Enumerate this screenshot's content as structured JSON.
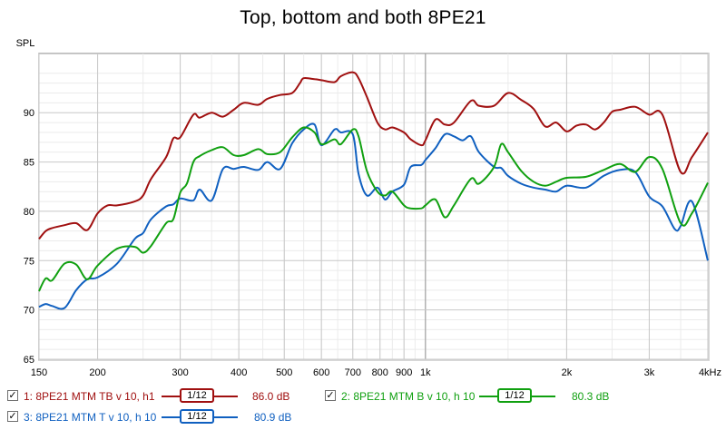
{
  "chart_data": {
    "type": "line",
    "title": "Top, bottom and both 8PE21",
    "ylabel": "SPL",
    "xlabel": "",
    "x_scale": "log",
    "xlim": [
      150,
      4000
    ],
    "ylim": [
      65,
      96
    ],
    "grid": true,
    "x_ticks": [
      {
        "value": 150,
        "label": "150"
      },
      {
        "value": 200,
        "label": "200"
      },
      {
        "value": 300,
        "label": "300"
      },
      {
        "value": 400,
        "label": "400"
      },
      {
        "value": 500,
        "label": "500"
      },
      {
        "value": 600,
        "label": "600"
      },
      {
        "value": 700,
        "label": "700"
      },
      {
        "value": 800,
        "label": "800"
      },
      {
        "value": 900,
        "label": "900"
      },
      {
        "value": 1000,
        "label": "1k"
      },
      {
        "value": 2000,
        "label": "2k"
      },
      {
        "value": 3000,
        "label": "3k"
      },
      {
        "value": 4000,
        "label": "4kHz"
      }
    ],
    "y_ticks": [
      65,
      70,
      75,
      80,
      85,
      90
    ],
    "series": [
      {
        "name": "1: 8PE21 MTM TB v 10, h1",
        "color": "#a01010",
        "x": [
          150,
          155,
          160,
          170,
          180,
          190,
          200,
          210,
          220,
          240,
          250,
          260,
          280,
          290,
          300,
          320,
          330,
          350,
          370,
          390,
          410,
          440,
          460,
          490,
          520,
          540,
          550,
          580,
          600,
          640,
          660,
          700,
          720,
          750,
          790,
          820,
          850,
          900,
          930,
          980,
          1000,
          1050,
          1100,
          1150,
          1250,
          1300,
          1400,
          1500,
          1600,
          1700,
          1800,
          1900,
          2000,
          2100,
          2200,
          2300,
          2400,
          2500,
          2600,
          2800,
          3000,
          3200,
          3500,
          3700,
          4000
        ],
        "y": [
          77.2,
          78.0,
          78.3,
          78.6,
          78.8,
          78.1,
          79.8,
          80.6,
          80.6,
          81.0,
          81.6,
          83.3,
          85.5,
          87.4,
          87.5,
          89.8,
          89.5,
          90.0,
          89.6,
          90.3,
          91.0,
          90.8,
          91.4,
          91.8,
          92.0,
          93.0,
          93.5,
          93.4,
          93.3,
          93.1,
          93.7,
          94.1,
          93.5,
          91.6,
          89.0,
          88.3,
          88.5,
          88.0,
          87.3,
          86.7,
          87.2,
          89.3,
          88.8,
          89.0,
          91.2,
          90.7,
          90.7,
          92.0,
          91.3,
          90.4,
          88.6,
          89.0,
          88.1,
          88.7,
          88.8,
          88.3,
          89.0,
          90.1,
          90.3,
          90.6,
          89.8,
          89.8,
          84.0,
          85.5,
          88.0
        ]
      },
      {
        "name": "2: 8PE21 MTM B v 10, h 10",
        "color": "#10a010",
        "x": [
          150,
          155,
          160,
          170,
          180,
          190,
          200,
          220,
          240,
          250,
          260,
          280,
          290,
          300,
          310,
          320,
          330,
          350,
          370,
          390,
          410,
          440,
          460,
          490,
          520,
          550,
          580,
          600,
          640,
          660,
          700,
          720,
          750,
          790,
          820,
          850,
          900,
          930,
          980,
          1000,
          1050,
          1100,
          1150,
          1250,
          1300,
          1400,
          1450,
          1500,
          1600,
          1700,
          1800,
          1900,
          2000,
          2200,
          2400,
          2600,
          2800,
          3000,
          3200,
          3500,
          3700,
          4000
        ],
        "y": [
          71.9,
          73.2,
          73.0,
          74.7,
          74.6,
          73.1,
          74.5,
          76.2,
          76.4,
          75.8,
          76.5,
          78.8,
          79.2,
          81.9,
          82.8,
          85.0,
          85.6,
          86.2,
          86.5,
          85.7,
          85.7,
          86.3,
          85.8,
          86.0,
          87.5,
          88.5,
          88.0,
          86.8,
          87.3,
          86.8,
          88.3,
          87.6,
          84.1,
          82.0,
          81.6,
          82.0,
          80.6,
          80.3,
          80.3,
          80.6,
          81.2,
          79.4,
          80.6,
          83.3,
          82.8,
          84.5,
          86.8,
          86.0,
          84.1,
          83.0,
          82.6,
          83.0,
          83.4,
          83.5,
          84.2,
          84.8,
          84.0,
          85.5,
          84.3,
          78.8,
          79.8,
          82.9
        ]
      },
      {
        "name": "3: 8PE21 MTM T v 10, h 10",
        "color": "#1060c0",
        "x": [
          150,
          155,
          160,
          170,
          180,
          190,
          200,
          220,
          240,
          250,
          260,
          280,
          290,
          300,
          320,
          330,
          350,
          370,
          390,
          410,
          440,
          460,
          490,
          520,
          550,
          580,
          600,
          640,
          660,
          700,
          720,
          750,
          790,
          820,
          850,
          900,
          930,
          980,
          1000,
          1050,
          1100,
          1150,
          1200,
          1250,
          1300,
          1400,
          1450,
          1500,
          1600,
          1700,
          1800,
          1900,
          2000,
          2200,
          2400,
          2600,
          2800,
          3000,
          3200,
          3400,
          3500,
          3700,
          4000
        ],
        "y": [
          70.3,
          70.6,
          70.4,
          70.2,
          72.0,
          73.1,
          73.3,
          74.7,
          77.2,
          77.8,
          79.2,
          80.5,
          80.7,
          81.3,
          81.1,
          82.2,
          81.1,
          84.3,
          84.3,
          84.5,
          84.2,
          85.0,
          84.3,
          86.9,
          88.3,
          88.8,
          86.7,
          88.3,
          88.0,
          87.8,
          83.8,
          81.6,
          82.4,
          81.2,
          82.0,
          82.7,
          84.5,
          84.7,
          85.2,
          86.4,
          87.8,
          87.6,
          87.2,
          87.6,
          86.0,
          84.5,
          84.4,
          83.6,
          82.8,
          82.4,
          82.2,
          82.0,
          82.6,
          82.4,
          83.6,
          84.2,
          84.0,
          81.5,
          80.5,
          78.2,
          78.5,
          81.0,
          75.0
        ]
      }
    ]
  },
  "legend": {
    "items": [
      {
        "checkbox": "✓",
        "label": "1: 8PE21 MTM TB v 10, h1",
        "smoothing": "1/12",
        "value": "86.0 dB",
        "color": "#a01010"
      },
      {
        "checkbox": "✓",
        "label": "2: 8PE21 MTM B v 10, h 10",
        "smoothing": "1/12",
        "value": "80.3 dB",
        "color": "#10a010"
      },
      {
        "checkbox": "✓",
        "label": "3: 8PE21 MTM T v 10, h 10",
        "smoothing": "1/12",
        "value": "80.9 dB",
        "color": "#1060c0"
      }
    ]
  }
}
